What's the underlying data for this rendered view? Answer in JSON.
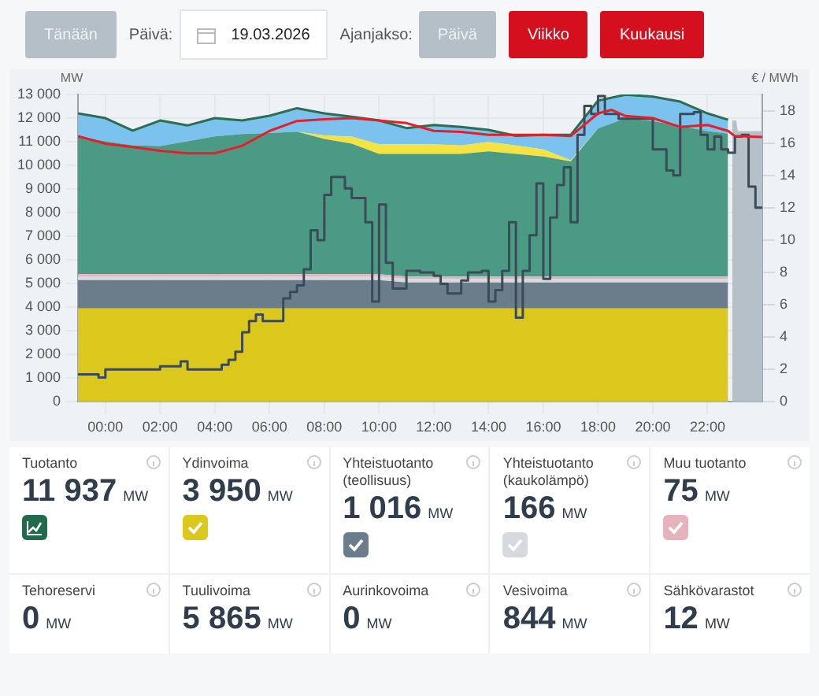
{
  "chart_data": [
    {
      "type": "other",
      "annotations": [
        "Tänään",
        "Päivä:",
        "19.03.2026",
        "Ajanjakso:",
        "Päivä",
        "Viikko",
        "Kuukausi"
      ]
    },
    {
      "type": "area",
      "stacked": true,
      "ylabel": "MW",
      "y2label": "€ / MWh",
      "marker": "none",
      "grid": true,
      "legend": false,
      "x": [
        -1,
        0,
        1,
        2,
        3,
        4,
        5,
        6,
        7,
        8,
        9,
        10,
        11,
        12,
        13,
        14,
        15,
        16,
        17,
        18,
        19,
        20,
        21,
        22,
        22.75,
        22.9,
        23.05,
        23.1,
        24
      ],
      "xlim": [
        -1,
        24
      ],
      "xticks": [
        {
          "value": 0,
          "label": "00:00"
        },
        {
          "value": 2,
          "label": "02:00"
        },
        {
          "value": 4,
          "label": "04:00"
        },
        {
          "value": 6,
          "label": "06:00"
        },
        {
          "value": 8,
          "label": "08:00"
        },
        {
          "value": 10,
          "label": "10:00"
        },
        {
          "value": 12,
          "label": "12:00"
        },
        {
          "value": 14,
          "label": "14:00"
        },
        {
          "value": 16,
          "label": "16:00"
        },
        {
          "value": 18,
          "label": "18:00"
        },
        {
          "value": 20,
          "label": "20:00"
        },
        {
          "value": 22,
          "label": "22:00"
        }
      ],
      "ylim": [
        0,
        13000
      ],
      "yticks": [
        0,
        {
          "value": 1000,
          "label": "1 000"
        },
        {
          "value": 2000,
          "label": "2 000"
        },
        {
          "value": 3000,
          "label": "3 000"
        },
        {
          "value": 4000,
          "label": "4 000"
        },
        {
          "value": 5000,
          "label": "5 000"
        },
        {
          "value": 6000,
          "label": "6 000"
        },
        {
          "value": 7000,
          "label": "7 000"
        },
        {
          "value": 8000,
          "label": "8 000"
        },
        {
          "value": 9000,
          "label": "9 000"
        },
        {
          "value": 10000,
          "label": "10 000"
        },
        {
          "value": 11000,
          "label": "11 000"
        },
        {
          "value": 12000,
          "label": "12 000"
        },
        {
          "value": 13000,
          "label": "13 000"
        }
      ],
      "y2lim": [
        0,
        19
      ],
      "y2ticks": [
        0,
        2,
        4,
        6,
        8,
        10,
        12,
        14,
        16,
        18
      ],
      "series": [
        {
          "type": "area",
          "color": "#dcc81c",
          "values": [
            3950,
            3950,
            3950,
            3950,
            3950,
            3950,
            3950,
            3950,
            3950,
            3950,
            3950,
            3950,
            3950,
            3950,
            3950,
            3950,
            3950,
            3950,
            3950,
            3950,
            3950,
            3950,
            3950,
            3950,
            3950,
            null,
            null,
            null,
            null
          ]
        },
        {
          "type": "area",
          "color": "#6b7d8b",
          "values": [
            1200,
            1200,
            1200,
            1200,
            1200,
            1200,
            1200,
            1200,
            1200,
            1200,
            1200,
            1200,
            1100,
            1100,
            1100,
            1100,
            1100,
            1100,
            1100,
            1100,
            1100,
            1100,
            1100,
            1100,
            1100,
            null,
            null,
            null,
            null
          ]
        },
        {
          "type": "area",
          "color": "#d6dade",
          "values": [
            150,
            150,
            150,
            150,
            150,
            150,
            150,
            150,
            150,
            150,
            150,
            150,
            150,
            150,
            150,
            150,
            150,
            150,
            150,
            150,
            150,
            150,
            150,
            150,
            150,
            null,
            null,
            null,
            null
          ]
        },
        {
          "type": "area",
          "color": "#e6b3bd",
          "values": [
            100,
            100,
            100,
            100,
            100,
            100,
            100,
            100,
            100,
            100,
            100,
            100,
            100,
            100,
            100,
            100,
            100,
            100,
            100,
            100,
            100,
            100,
            100,
            100,
            100,
            null,
            null,
            null,
            null
          ]
        },
        {
          "type": "area",
          "color": "#4b9b84",
          "values": [
            5840,
            5620,
            5450,
            5420,
            5620,
            5830,
            5930,
            5970,
            6030,
            5720,
            5520,
            5090,
            5190,
            5190,
            5190,
            5290,
            5190,
            5080,
            4870,
            6260,
            6690,
            6580,
            6370,
            6150,
            6040,
            null,
            null,
            null,
            null
          ]
        },
        {
          "type": "area",
          "color": "#f4e443",
          "values": [
            0,
            0,
            0,
            0,
            0,
            0,
            0,
            0,
            0,
            150,
            300,
            400,
            400,
            400,
            350,
            400,
            350,
            300,
            50,
            0,
            0,
            0,
            0,
            0,
            0,
            null,
            null,
            null,
            null
          ]
        },
        {
          "type": "area",
          "color": "#7cc2ee",
          "values": [
            960,
            980,
            620,
            1080,
            670,
            770,
            570,
            730,
            990,
            930,
            840,
            1010,
            690,
            820,
            790,
            510,
            410,
            610,
            1070,
            1180,
            1000,
            1030,
            1030,
            750,
            590,
            null,
            null,
            null,
            null
          ]
        },
        {
          "type": "area",
          "color": "#b6c0c8",
          "values": [
            null,
            null,
            null,
            null,
            null,
            null,
            null,
            null,
            null,
            null,
            null,
            null,
            null,
            null,
            null,
            null,
            null,
            null,
            null,
            null,
            null,
            null,
            null,
            null,
            null,
            11900,
            11900,
            11450,
            11450
          ]
        },
        {
          "type": "line",
          "color": "#e2202c",
          "x": [
            -1,
            0,
            1,
            2,
            3,
            4,
            5,
            6,
            7,
            8,
            9,
            10,
            11,
            12,
            13,
            14,
            15,
            16,
            17,
            18,
            18.5,
            19,
            20,
            21,
            22,
            22.75,
            23,
            24
          ],
          "values": [
            11240,
            10920,
            10780,
            10620,
            10510,
            10510,
            10830,
            11460,
            11880,
            11950,
            12000,
            11900,
            11790,
            11460,
            11420,
            11290,
            11290,
            11290,
            11240,
            12200,
            12350,
            12090,
            12000,
            11630,
            11710,
            11460,
            11240,
            11200
          ]
        },
        {
          "type": "step",
          "color": "#3c4a57",
          "axis": "y2",
          "x": [
            -1,
            -0.25,
            0,
            2,
            2.75,
            3,
            4.25,
            4.5,
            4.75,
            5,
            5.25,
            5.5,
            5.75,
            6.5,
            6.75,
            7,
            7.25,
            7.5,
            7.75,
            8,
            8.25,
            8.75,
            9,
            9.5,
            9.75,
            10,
            10.25,
            10.5,
            11,
            11.5,
            12,
            12.25,
            12.5,
            13,
            13.25,
            13.75,
            14,
            14.25,
            14.5,
            14.75,
            15,
            15.25,
            15.5,
            15.75,
            16,
            16.25,
            16.5,
            16.75,
            17,
            17.25,
            17.5,
            17.75,
            18,
            18.25,
            18.75,
            20,
            20.5,
            20.75,
            21,
            21.5,
            21.75,
            22,
            22.25,
            22.5,
            22.75,
            23,
            23.25,
            23.5,
            23.75,
            24
          ],
          "values": [
            1.7,
            1.5,
            2.0,
            2.2,
            2.5,
            2.0,
            2.3,
            2.6,
            3.1,
            4.3,
            5.0,
            5.4,
            5.0,
            6.4,
            6.8,
            7.2,
            8.2,
            10.6,
            10.0,
            12.8,
            13.9,
            13.2,
            12.6,
            11.1,
            6.2,
            12.2,
            8.6,
            7.0,
            8.1,
            8.0,
            7.8,
            7.3,
            6.7,
            7.5,
            8.0,
            8.1,
            6.2,
            6.9,
            8.1,
            11.1,
            5.2,
            8.1,
            10.3,
            13.5,
            7.6,
            11.4,
            13.4,
            14.5,
            11.1,
            16.5,
            18.3,
            17.8,
            18.9,
            17.8,
            17.5,
            15.6,
            14.3,
            14.0,
            17.8,
            17.9,
            16.5,
            15.6,
            16.4,
            15.6,
            15.4,
            16.4,
            16.5,
            13.3,
            12.0,
            12.0
          ]
        }
      ]
    },
    {
      "type": "other",
      "ylabel": "MW",
      "categories": [
        "Tuotanto",
        "Ydinvoima",
        "Yhteistuotanto (teollisuus)",
        "Yhteistuotanto (kaukolämpö)",
        "Muu tuotanto",
        "Tehoreservi",
        "Tuulivoima",
        "Aurinkovoima",
        "Vesivoima",
        "Sähkövarastot"
      ],
      "value_labels": [
        "11 937",
        "3 950",
        "1 016",
        "166",
        "75",
        "0",
        "5 865",
        "0",
        "844",
        "12"
      ]
    }
  ]
}
